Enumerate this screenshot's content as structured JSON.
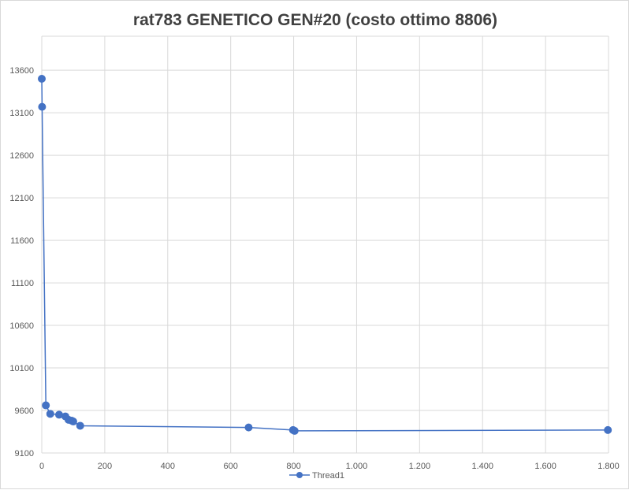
{
  "chart_data": {
    "type": "scatter",
    "title": "rat783 GENETICO GEN#20 (costo ottimo 8806)",
    "xlabel": "",
    "ylabel": "",
    "xlim": [
      0,
      1800
    ],
    "ylim": [
      9100,
      14000
    ],
    "x_ticks": [
      0,
      200,
      400,
      600,
      800,
      1000,
      1200,
      1400,
      1600,
      1800
    ],
    "x_tick_labels": [
      "0",
      "200",
      "400",
      "600",
      "800",
      "1.000",
      "1.200",
      "1.400",
      "1.600",
      "1.800"
    ],
    "y_ticks": [
      9100,
      9600,
      10100,
      10600,
      11100,
      11600,
      12100,
      12600,
      13100,
      13600
    ],
    "y_tick_labels": [
      "9100",
      "9600",
      "10100",
      "10600",
      "11100",
      "11600",
      "12100",
      "12600",
      "13100",
      "13600"
    ],
    "grid": true,
    "legend": "bottom",
    "series": [
      {
        "name": "Thread1",
        "color": "#4472C4",
        "marker": "circle",
        "connected": true,
        "x": [
          0,
          1,
          13,
          27,
          55,
          75,
          85,
          95,
          100,
          122,
          657,
          798,
          803,
          1798
        ],
        "y": [
          13500,
          13170,
          9660,
          9560,
          9550,
          9530,
          9490,
          9480,
          9470,
          9420,
          9400,
          9370,
          9360,
          9370
        ]
      }
    ]
  }
}
